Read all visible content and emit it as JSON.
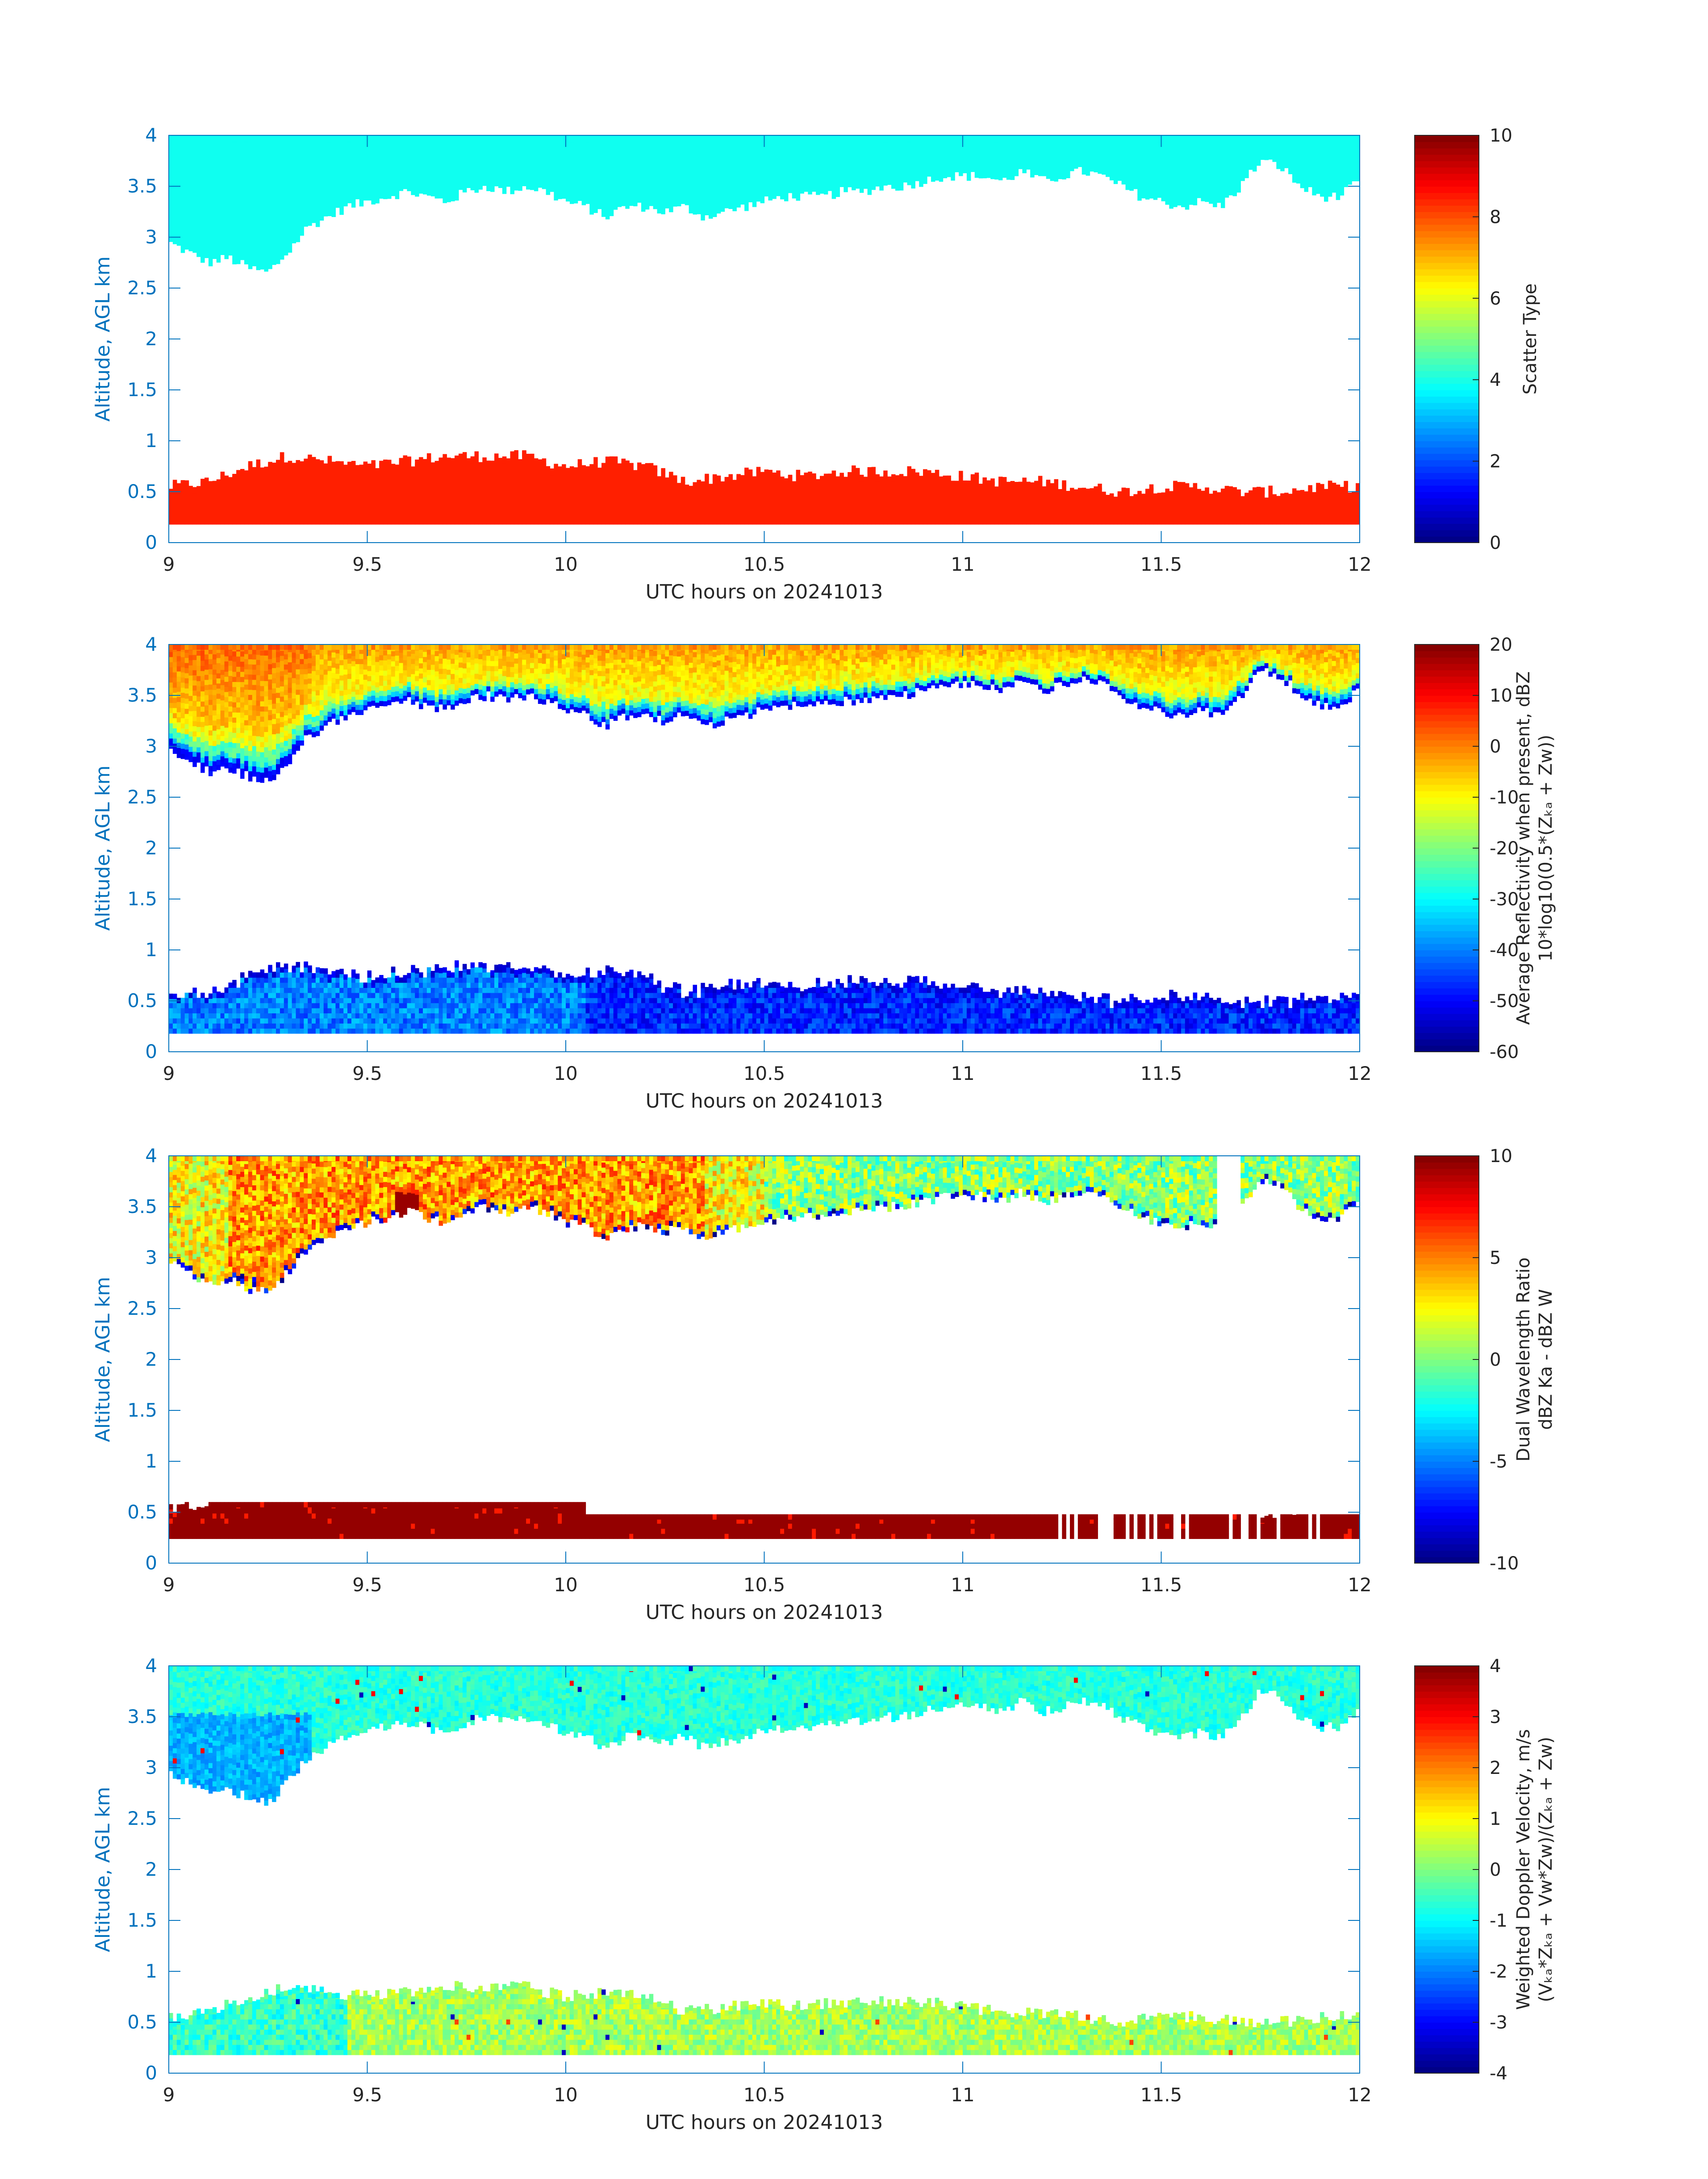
{
  "chart_data": [
    {
      "type": "heatmap",
      "title": "",
      "xlabel": "UTC hours on 20241013",
      "ylabel": "Altitude, AGL km",
      "xlim": [
        9,
        12
      ],
      "ylim": [
        0,
        4
      ],
      "xticks": [
        "9",
        "9.5",
        "10",
        "10.5",
        "11",
        "11.5",
        "12"
      ],
      "yticks": [
        "0",
        "0.5",
        "1",
        "1.5",
        "2",
        "2.5",
        "3",
        "3.5",
        "4"
      ],
      "colorbar": {
        "label_lines": [
          "Scatter Type"
        ],
        "range": [
          0,
          10
        ],
        "ticks": [
          "0",
          "2",
          "4",
          "6",
          "8",
          "10"
        ],
        "colormap": "jet"
      },
      "upper_layer": {
        "top_km": 4.0,
        "base_km_samples": [
          2.95,
          2.85,
          2.75,
          2.8,
          2.7,
          2.65,
          2.85,
          3.1,
          3.2,
          3.3,
          3.35,
          3.4,
          3.45,
          3.4,
          3.35,
          3.45,
          3.5,
          3.45,
          3.5,
          3.45,
          3.35,
          3.3,
          3.2,
          3.3,
          3.3,
          3.25,
          3.3,
          3.2,
          3.25,
          3.3,
          3.35,
          3.4,
          3.4,
          3.4,
          3.45,
          3.45,
          3.5,
          3.5,
          3.55,
          3.6,
          3.6,
          3.6,
          3.55,
          3.65,
          3.55,
          3.6,
          3.65,
          3.6,
          3.5,
          3.4,
          3.35,
          3.3,
          3.35,
          3.3,
          3.5,
          3.75,
          3.7,
          3.5,
          3.4,
          3.4,
          3.55
        ],
        "dominant_value": 4
      },
      "lower_layer": {
        "base_km": 0.18,
        "top_km_samples": [
          0.55,
          0.6,
          0.75,
          0.85,
          0.8,
          0.75,
          0.8,
          0.85,
          0.85,
          0.85,
          0.75,
          0.8,
          0.75,
          0.6,
          0.65,
          0.7,
          0.65,
          0.7,
          0.7,
          0.7,
          0.65,
          0.6,
          0.6,
          0.55,
          0.5,
          0.55,
          0.55,
          0.5,
          0.5,
          0.55,
          0.55
        ],
        "dominant_value": 8.5
      }
    },
    {
      "type": "heatmap",
      "title": "",
      "xlabel": "UTC hours on 20241013",
      "ylabel": "Altitude, AGL km",
      "xlim": [
        9,
        12
      ],
      "ylim": [
        0,
        4
      ],
      "xticks": [
        "9",
        "9.5",
        "10",
        "10.5",
        "11",
        "11.5",
        "12"
      ],
      "yticks": [
        "0",
        "0.5",
        "1",
        "1.5",
        "2",
        "2.5",
        "3",
        "3.5",
        "4"
      ],
      "colorbar": {
        "label_lines": [
          "Average Reflectivity when present, dBZ",
          "10*log10(0.5*(Zₖₐ + Zᴡ))"
        ],
        "range": [
          -60,
          20
        ],
        "ticks": [
          "-60",
          "-50",
          "-40",
          "-30",
          "-20",
          "-10",
          "0",
          "10",
          "20"
        ],
        "colormap": "jet"
      },
      "upper_layer": {
        "top_value_dbz": -5,
        "base_value_dbz": -52
      },
      "lower_layer": {
        "typical_value_dbz": -45
      }
    },
    {
      "type": "heatmap",
      "title": "",
      "xlabel": "UTC hours on 20241013",
      "ylabel": "Altitude, AGL km",
      "xlim": [
        9,
        12
      ],
      "ylim": [
        0,
        4
      ],
      "xticks": [
        "9",
        "9.5",
        "10",
        "10.5",
        "11",
        "11.5",
        "12"
      ],
      "yticks": [
        "0",
        "0.5",
        "1",
        "1.5",
        "2",
        "2.5",
        "3",
        "3.5",
        "4"
      ],
      "colorbar": {
        "label_lines": [
          "Dual Wavelength Ratio",
          "dBZ Ka - dBZ W"
        ],
        "range": [
          -10,
          10
        ],
        "ticks": [
          "-10",
          "-5",
          "0",
          "5",
          "10"
        ],
        "colormap": "jet"
      },
      "upper_layer": {
        "typical_value_db": 2
      },
      "lower_layer": {
        "typical_value_db": 10
      }
    },
    {
      "type": "heatmap",
      "title": "",
      "xlabel": "UTC hours on 20241013",
      "ylabel": "Altitude, AGL km",
      "xlim": [
        9,
        12
      ],
      "ylim": [
        0,
        4
      ],
      "xticks": [
        "9",
        "9.5",
        "10",
        "10.5",
        "11",
        "11.5",
        "12"
      ],
      "yticks": [
        "0",
        "0.5",
        "1",
        "1.5",
        "2",
        "2.5",
        "3",
        "3.5",
        "4"
      ],
      "colorbar": {
        "label_lines": [
          "Weighted Doppler Velocity, m/s",
          "(Vₖₐ*Zₖₐ + Vᴡ*Zᴡ)/(Zₖₐ + Zᴡ)"
        ],
        "range": [
          -4,
          4
        ],
        "ticks": [
          "-4",
          "-3",
          "-2",
          "-1",
          "0",
          "1",
          "2",
          "3",
          "4"
        ],
        "colormap": "jet"
      },
      "upper_layer": {
        "typical_value_ms": -0.8
      },
      "lower_layer": {
        "typical_value_ms": 0.3
      }
    }
  ]
}
